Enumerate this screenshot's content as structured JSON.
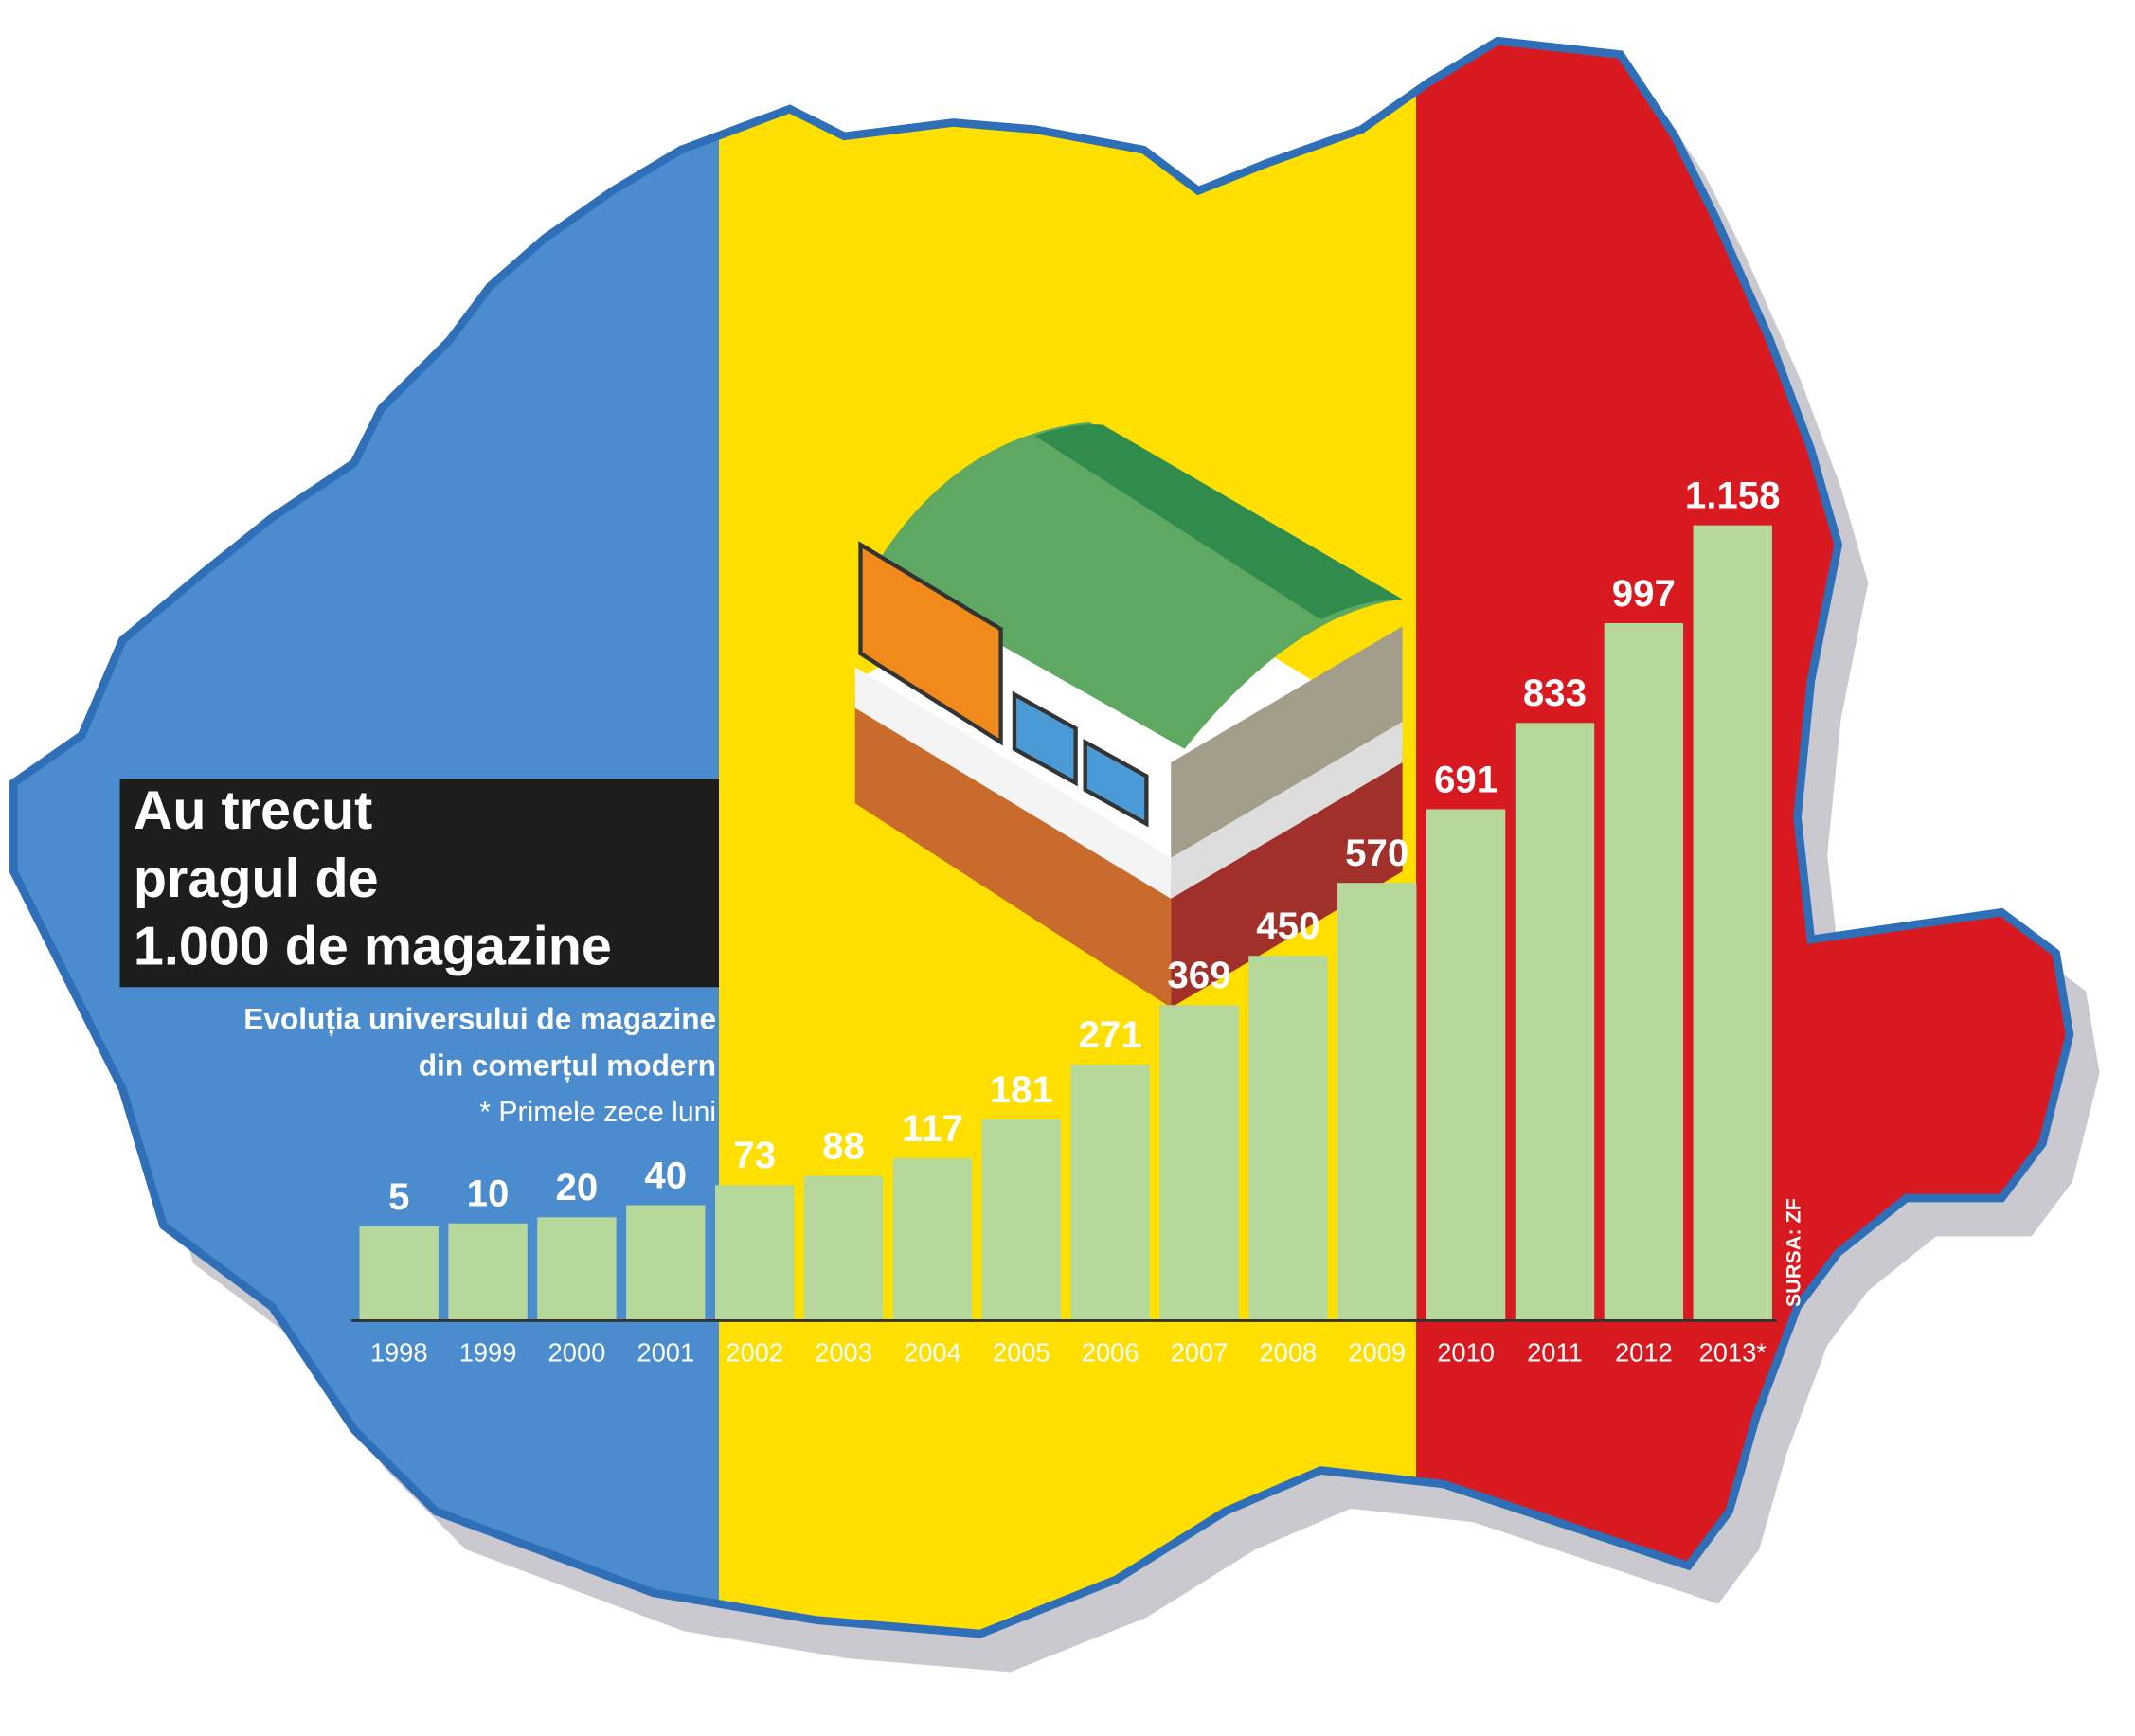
{
  "chart_data": {
    "type": "bar",
    "title_lines": [
      "Au trecut",
      "pragul de",
      "1.000 de magazine"
    ],
    "subtitle_lines": [
      "Evoluția universului de magazine",
      "din comerțul modern"
    ],
    "note": "* Primele zece luni",
    "source": "SURSA: ZF",
    "categories": [
      "1998",
      "1999",
      "2000",
      "2001",
      "2002",
      "2003",
      "2004",
      "2005",
      "2006",
      "2007",
      "2008",
      "2009",
      "2010",
      "2011",
      "2012",
      "2013*"
    ],
    "values": [
      5,
      10,
      20,
      40,
      73,
      88,
      117,
      181,
      271,
      369,
      450,
      570,
      691,
      833,
      997,
      1158
    ],
    "value_labels": [
      "5",
      "10",
      "20",
      "40",
      "73",
      "88",
      "117",
      "181",
      "271",
      "369",
      "450",
      "570",
      "691",
      "833",
      "997",
      "1.158"
    ],
    "color": "#b6d99b",
    "ylim": [
      -150,
      1350
    ]
  }
}
